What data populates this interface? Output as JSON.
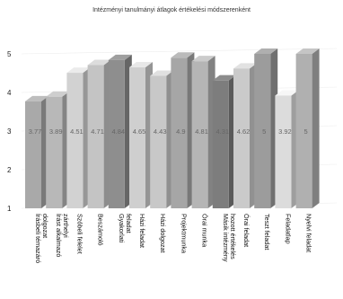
{
  "chart_data": {
    "type": "bar",
    "title": "Intézményi tanulmányi átlagok értékelési módszerenként",
    "categories": [
      "Írásbeli témazáró dolgozat",
      "Írást alkalmazó zárthelyi",
      "Szóbeli felelet",
      "Beszámoló",
      "Gyakorlati feladat",
      "Házi feladat",
      "Házi dolgozat",
      "Projektmunka",
      "Órai munka",
      "Másik intézmény hozott értékelés",
      "Órai feladat",
      "Teszt feladat",
      "Feladatlap",
      "Nyelvi feladat"
    ],
    "values": [
      3.77,
      3.89,
      4.51,
      4.71,
      4.84,
      4.65,
      4.43,
      4.9,
      4.81,
      4.31,
      4.62,
      5,
      3.92,
      5
    ],
    "value_labels": [
      "3.77",
      "3.89",
      "4.51",
      "4.71",
      "4.84",
      "4.65",
      "4.43",
      "4.9",
      "4.81",
      "4.31",
      "4.62",
      "5",
      "3.92",
      "5"
    ],
    "yticks": [
      "1",
      "2",
      "3",
      "4",
      "5"
    ],
    "ylim": [
      1,
      5
    ],
    "grid": true,
    "colors": [
      "#a9a9a9",
      "#b8b8b8",
      "#d2d2d2",
      "#c4c4c4",
      "#8e8e8e",
      "#cfcfcf",
      "#c8c8c8",
      "#a6a6a6",
      "#b5b5b5",
      "#7d7d7d",
      "#cacaca",
      "#9c9c9c",
      "#dcdcdc",
      "#b0b0b0"
    ]
  }
}
